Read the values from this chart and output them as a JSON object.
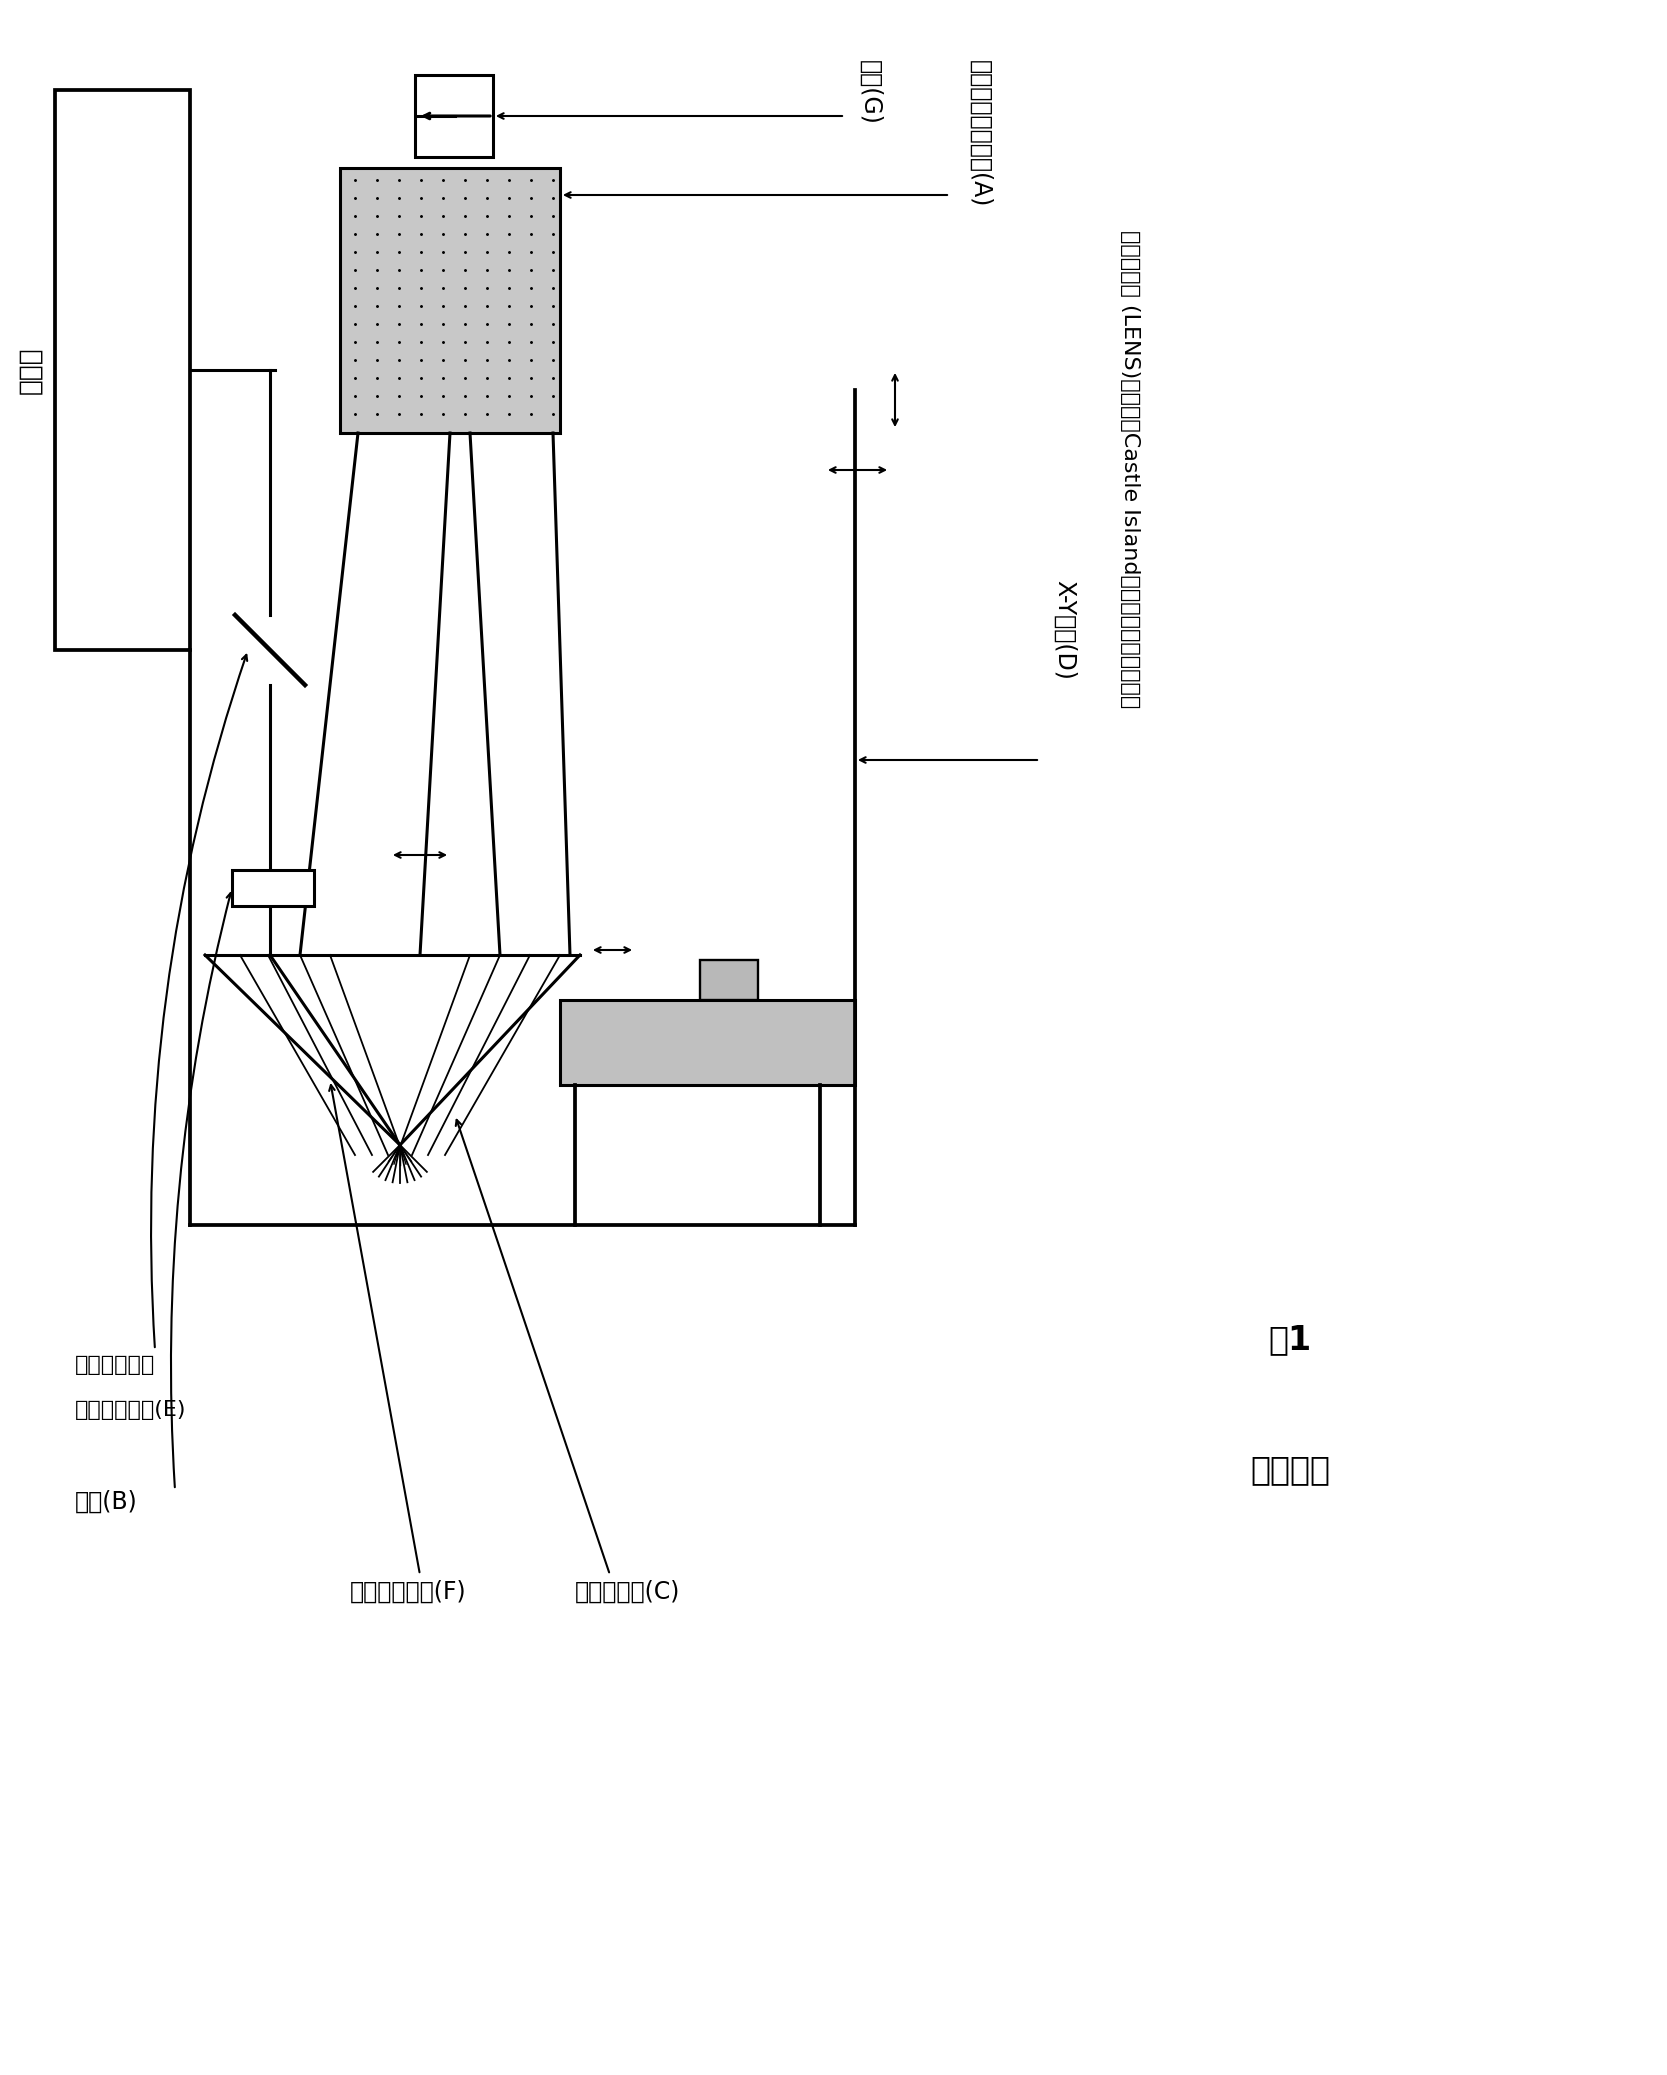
{
  "bg_color": "#ffffff",
  "fig_width": 16.67,
  "fig_height": 20.75,
  "fig_dpi": 100,
  "label_laser": "激光器",
  "label_A": "粉末材料供应装置(A)",
  "label_G": "载气(G)",
  "label_D": "X-Y台面(D)",
  "label_E1": "反射镜或其它",
  "label_E2": "射束导引器件(E)",
  "label_B": "透镜(B)",
  "label_F": "保护气体入口(F)",
  "label_C": "材料沉积头(C)",
  "title_num": "图1",
  "title_sub": "现有技术",
  "source_line1": "激光净成形 (LENS)。来源：Castle Island的快速原型法全球指南"
}
